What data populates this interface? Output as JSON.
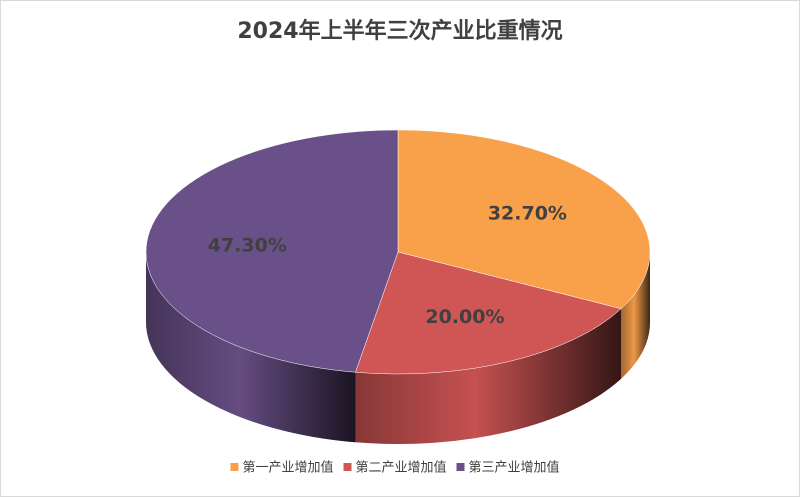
{
  "chart_data": {
    "type": "pie",
    "title": "2024年上半年三次产业比重情况",
    "categories": [
      "第一产业增加值",
      "第二产业增加值",
      "第三产业增加值"
    ],
    "values": [
      32.7,
      20.0,
      47.3
    ],
    "value_labels": [
      "32.70%",
      "20.00%",
      "47.30%"
    ],
    "colors": [
      "#f9a04b",
      "#d05555",
      "#6a5088"
    ],
    "legend": "bottom"
  }
}
